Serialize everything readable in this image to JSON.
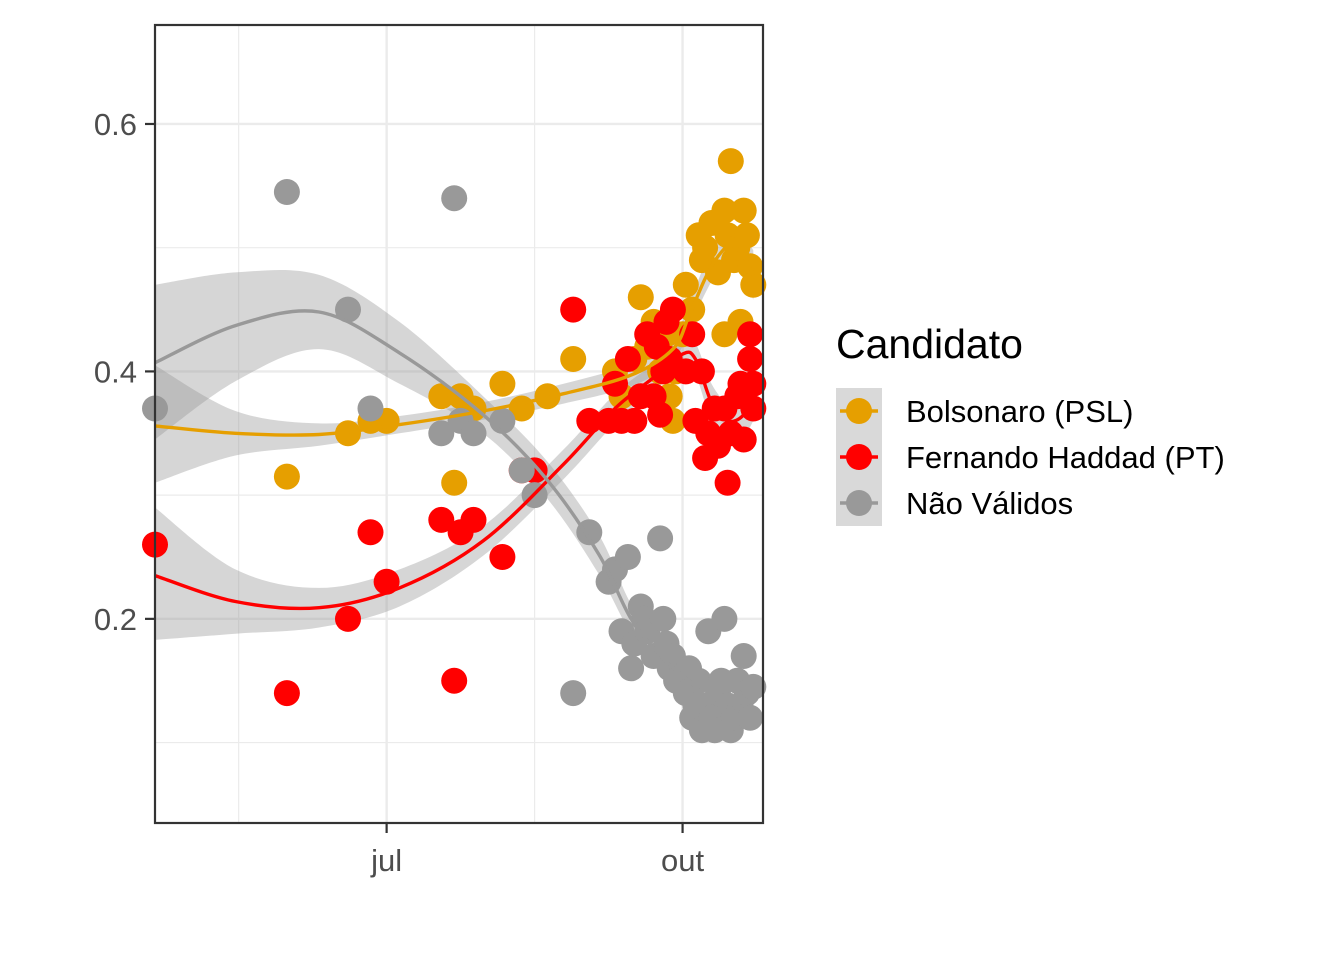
{
  "chart_data": {
    "type": "scatter",
    "title": "",
    "xlabel": "",
    "ylabel": "",
    "x_ticks": [
      {
        "label": "jul",
        "date": "2018-07-01"
      },
      {
        "label": "out",
        "date": "2018-10-01"
      }
    ],
    "xlim": [
      "2018-04-20",
      "2018-10-26"
    ],
    "y_ticks": [
      0.2,
      0.4,
      0.6
    ],
    "ylim": [
      0.035,
      0.68
    ],
    "grid": true,
    "smoothing": "loess with grey confidence band",
    "legend": {
      "title": "Candidato",
      "position": "right",
      "entries": [
        {
          "label": "Bolsonaro (PSL)",
          "color": "#E69F00"
        },
        {
          "label": "Fernando Haddad (PT)",
          "color": "#FF0000"
        },
        {
          "label": "Não Válidos",
          "color": "#999999"
        }
      ]
    },
    "series": [
      {
        "name": "Bolsonaro (PSL)",
        "color": "#E69F00",
        "points": [
          [
            "2018-05-31",
            0.315
          ],
          [
            "2018-06-19",
            0.35
          ],
          [
            "2018-06-26",
            0.36
          ],
          [
            "2018-07-01",
            0.36
          ],
          [
            "2018-07-18",
            0.38
          ],
          [
            "2018-07-22",
            0.31
          ],
          [
            "2018-07-24",
            0.38
          ],
          [
            "2018-07-28",
            0.37
          ],
          [
            "2018-08-06",
            0.39
          ],
          [
            "2018-08-12",
            0.37
          ],
          [
            "2018-08-20",
            0.38
          ],
          [
            "2018-08-28",
            0.41
          ],
          [
            "2018-09-10",
            0.4
          ],
          [
            "2018-09-12",
            0.38
          ],
          [
            "2018-09-16",
            0.41
          ],
          [
            "2018-09-18",
            0.46
          ],
          [
            "2018-09-20",
            0.42
          ],
          [
            "2018-09-22",
            0.44
          ],
          [
            "2018-09-24",
            0.4
          ],
          [
            "2018-09-26",
            0.43
          ],
          [
            "2018-09-27",
            0.38
          ],
          [
            "2018-09-28",
            0.36
          ],
          [
            "2018-09-29",
            0.4
          ],
          [
            "2018-10-01",
            0.43
          ],
          [
            "2018-10-02",
            0.47
          ],
          [
            "2018-10-04",
            0.45
          ],
          [
            "2018-10-06",
            0.51
          ],
          [
            "2018-10-07",
            0.49
          ],
          [
            "2018-10-08",
            0.5
          ],
          [
            "2018-10-10",
            0.52
          ],
          [
            "2018-10-12",
            0.48
          ],
          [
            "2018-10-14",
            0.53
          ],
          [
            "2018-10-14",
            0.43
          ],
          [
            "2018-10-15",
            0.51
          ],
          [
            "2018-10-16",
            0.57
          ],
          [
            "2018-10-17",
            0.49
          ],
          [
            "2018-10-18",
            0.5
          ],
          [
            "2018-10-19",
            0.44
          ],
          [
            "2018-10-20",
            0.53
          ],
          [
            "2018-10-21",
            0.51
          ],
          [
            "2018-10-22",
            0.485
          ],
          [
            "2018-10-23",
            0.47
          ]
        ],
        "trend": [
          [
            "2018-04-20",
            0.356
          ],
          [
            "2018-05-15",
            0.35
          ],
          [
            "2018-06-10",
            0.349
          ],
          [
            "2018-07-05",
            0.357
          ],
          [
            "2018-07-31",
            0.368
          ],
          [
            "2018-08-25",
            0.382
          ],
          [
            "2018-09-15",
            0.397
          ],
          [
            "2018-09-28",
            0.418
          ],
          [
            "2018-10-03",
            0.445
          ],
          [
            "2018-10-08",
            0.475
          ],
          [
            "2018-10-12",
            0.493
          ],
          [
            "2018-10-16",
            0.502
          ],
          [
            "2018-10-20",
            0.493
          ],
          [
            "2018-10-23",
            0.478
          ]
        ],
        "band_upper": [
          [
            "2018-04-20",
            0.405
          ],
          [
            "2018-05-15",
            0.368
          ],
          [
            "2018-06-10",
            0.358
          ],
          [
            "2018-07-05",
            0.364
          ],
          [
            "2018-07-31",
            0.375
          ],
          [
            "2018-08-25",
            0.39
          ],
          [
            "2018-09-15",
            0.406
          ],
          [
            "2018-09-28",
            0.428
          ],
          [
            "2018-10-03",
            0.455
          ],
          [
            "2018-10-08",
            0.487
          ],
          [
            "2018-10-12",
            0.505
          ],
          [
            "2018-10-16",
            0.514
          ],
          [
            "2018-10-20",
            0.508
          ],
          [
            "2018-10-23",
            0.498
          ]
        ],
        "band_lower": [
          [
            "2018-04-20",
            0.31
          ],
          [
            "2018-05-15",
            0.332
          ],
          [
            "2018-06-10",
            0.34
          ],
          [
            "2018-07-05",
            0.35
          ],
          [
            "2018-07-31",
            0.361
          ],
          [
            "2018-08-25",
            0.374
          ],
          [
            "2018-09-15",
            0.388
          ],
          [
            "2018-09-28",
            0.408
          ],
          [
            "2018-10-03",
            0.435
          ],
          [
            "2018-10-08",
            0.463
          ],
          [
            "2018-10-12",
            0.481
          ],
          [
            "2018-10-16",
            0.49
          ],
          [
            "2018-10-20",
            0.478
          ],
          [
            "2018-10-23",
            0.458
          ]
        ]
      },
      {
        "name": "Fernando Haddad (PT)",
        "color": "#FF0000",
        "points": [
          [
            "2018-04-20",
            0.26
          ],
          [
            "2018-05-31",
            0.14
          ],
          [
            "2018-06-19",
            0.2
          ],
          [
            "2018-06-26",
            0.27
          ],
          [
            "2018-07-01",
            0.23
          ],
          [
            "2018-07-18",
            0.28
          ],
          [
            "2018-07-22",
            0.15
          ],
          [
            "2018-07-24",
            0.27
          ],
          [
            "2018-07-28",
            0.28
          ],
          [
            "2018-08-06",
            0.25
          ],
          [
            "2018-08-12",
            0.32
          ],
          [
            "2018-08-16",
            0.32
          ],
          [
            "2018-08-28",
            0.45
          ],
          [
            "2018-09-02",
            0.36
          ],
          [
            "2018-09-08",
            0.36
          ],
          [
            "2018-09-10",
            0.39
          ],
          [
            "2018-09-12",
            0.36
          ],
          [
            "2018-09-14",
            0.41
          ],
          [
            "2018-09-16",
            0.36
          ],
          [
            "2018-09-18",
            0.38
          ],
          [
            "2018-09-20",
            0.43
          ],
          [
            "2018-09-22",
            0.38
          ],
          [
            "2018-09-23",
            0.42
          ],
          [
            "2018-09-24",
            0.365
          ],
          [
            "2018-09-25",
            0.4
          ],
          [
            "2018-09-26",
            0.44
          ],
          [
            "2018-09-27",
            0.41
          ],
          [
            "2018-09-28",
            0.45
          ],
          [
            "2018-10-02",
            0.4
          ],
          [
            "2018-10-04",
            0.43
          ],
          [
            "2018-10-05",
            0.36
          ],
          [
            "2018-10-07",
            0.4
          ],
          [
            "2018-10-08",
            0.33
          ],
          [
            "2018-10-09",
            0.35
          ],
          [
            "2018-10-11",
            0.37
          ],
          [
            "2018-10-12",
            0.34
          ],
          [
            "2018-10-14",
            0.37
          ],
          [
            "2018-10-15",
            0.31
          ],
          [
            "2018-10-16",
            0.35
          ],
          [
            "2018-10-18",
            0.38
          ],
          [
            "2018-10-19",
            0.39
          ],
          [
            "2018-10-20",
            0.345
          ],
          [
            "2018-10-22",
            0.43
          ],
          [
            "2018-10-22",
            0.41
          ],
          [
            "2018-10-23",
            0.37
          ],
          [
            "2018-10-23",
            0.39
          ]
        ],
        "trend": [
          [
            "2018-04-20",
            0.235
          ],
          [
            "2018-05-15",
            0.214
          ],
          [
            "2018-06-10",
            0.209
          ],
          [
            "2018-07-05",
            0.225
          ],
          [
            "2018-07-31",
            0.263
          ],
          [
            "2018-08-25",
            0.325
          ],
          [
            "2018-09-10",
            0.37
          ],
          [
            "2018-09-22",
            0.395
          ],
          [
            "2018-10-01",
            0.414
          ],
          [
            "2018-10-05",
            0.41
          ],
          [
            "2018-10-10",
            0.375
          ],
          [
            "2018-10-15",
            0.36
          ],
          [
            "2018-10-20",
            0.365
          ],
          [
            "2018-10-23",
            0.383
          ]
        ],
        "band_upper": [
          [
            "2018-04-20",
            0.29
          ],
          [
            "2018-05-15",
            0.24
          ],
          [
            "2018-06-10",
            0.225
          ],
          [
            "2018-07-05",
            0.24
          ],
          [
            "2018-07-31",
            0.275
          ],
          [
            "2018-08-25",
            0.337
          ],
          [
            "2018-09-10",
            0.382
          ],
          [
            "2018-09-22",
            0.406
          ],
          [
            "2018-10-01",
            0.425
          ],
          [
            "2018-10-05",
            0.423
          ],
          [
            "2018-10-10",
            0.39
          ],
          [
            "2018-10-15",
            0.375
          ],
          [
            "2018-10-20",
            0.382
          ],
          [
            "2018-10-23",
            0.405
          ]
        ],
        "band_lower": [
          [
            "2018-04-20",
            0.183
          ],
          [
            "2018-05-15",
            0.188
          ],
          [
            "2018-06-10",
            0.193
          ],
          [
            "2018-07-05",
            0.21
          ],
          [
            "2018-07-31",
            0.251
          ],
          [
            "2018-08-25",
            0.313
          ],
          [
            "2018-09-10",
            0.358
          ],
          [
            "2018-09-22",
            0.384
          ],
          [
            "2018-10-01",
            0.403
          ],
          [
            "2018-10-05",
            0.397
          ],
          [
            "2018-10-10",
            0.36
          ],
          [
            "2018-10-15",
            0.345
          ],
          [
            "2018-10-20",
            0.348
          ],
          [
            "2018-10-23",
            0.36
          ]
        ]
      },
      {
        "name": "Não Válidos",
        "color": "#999999",
        "points": [
          [
            "2018-04-20",
            0.37
          ],
          [
            "2018-05-31",
            0.545
          ],
          [
            "2018-06-19",
            0.45
          ],
          [
            "2018-06-26",
            0.37
          ],
          [
            "2018-07-18",
            0.35
          ],
          [
            "2018-07-22",
            0.54
          ],
          [
            "2018-07-24",
            0.36
          ],
          [
            "2018-07-28",
            0.35
          ],
          [
            "2018-08-06",
            0.36
          ],
          [
            "2018-08-12",
            0.32
          ],
          [
            "2018-08-16",
            0.3
          ],
          [
            "2018-08-28",
            0.14
          ],
          [
            "2018-09-02",
            0.27
          ],
          [
            "2018-09-08",
            0.23
          ],
          [
            "2018-09-10",
            0.24
          ],
          [
            "2018-09-12",
            0.19
          ],
          [
            "2018-09-14",
            0.25
          ],
          [
            "2018-09-15",
            0.16
          ],
          [
            "2018-09-16",
            0.18
          ],
          [
            "2018-09-18",
            0.21
          ],
          [
            "2018-09-19",
            0.2
          ],
          [
            "2018-09-20",
            0.19
          ],
          [
            "2018-09-22",
            0.17
          ],
          [
            "2018-09-24",
            0.265
          ],
          [
            "2018-09-25",
            0.2
          ],
          [
            "2018-09-26",
            0.18
          ],
          [
            "2018-09-27",
            0.16
          ],
          [
            "2018-09-28",
            0.17
          ],
          [
            "2018-09-29",
            0.15
          ],
          [
            "2018-10-01",
            0.155
          ],
          [
            "2018-10-02",
            0.14
          ],
          [
            "2018-10-03",
            0.16
          ],
          [
            "2018-10-04",
            0.12
          ],
          [
            "2018-10-05",
            0.13
          ],
          [
            "2018-10-06",
            0.15
          ],
          [
            "2018-10-07",
            0.11
          ],
          [
            "2018-10-08",
            0.13
          ],
          [
            "2018-10-09",
            0.19
          ],
          [
            "2018-10-10",
            0.12
          ],
          [
            "2018-10-11",
            0.11
          ],
          [
            "2018-10-12",
            0.14
          ],
          [
            "2018-10-13",
            0.15
          ],
          [
            "2018-10-14",
            0.2
          ],
          [
            "2018-10-15",
            0.13
          ],
          [
            "2018-10-16",
            0.11
          ],
          [
            "2018-10-17",
            0.12
          ],
          [
            "2018-10-18",
            0.15
          ],
          [
            "2018-10-19",
            0.13
          ],
          [
            "2018-10-20",
            0.17
          ],
          [
            "2018-10-21",
            0.14
          ],
          [
            "2018-10-22",
            0.12
          ],
          [
            "2018-10-23",
            0.145
          ]
        ],
        "trend": [
          [
            "2018-04-20",
            0.407
          ],
          [
            "2018-05-15",
            0.437
          ],
          [
            "2018-06-10",
            0.448
          ],
          [
            "2018-07-05",
            0.415
          ],
          [
            "2018-07-31",
            0.365
          ],
          [
            "2018-08-20",
            0.312
          ],
          [
            "2018-09-05",
            0.252
          ],
          [
            "2018-09-15",
            0.2
          ],
          [
            "2018-09-25",
            0.168
          ],
          [
            "2018-10-03",
            0.15
          ],
          [
            "2018-10-10",
            0.133
          ],
          [
            "2018-10-16",
            0.128
          ],
          [
            "2018-10-20",
            0.13
          ],
          [
            "2018-10-23",
            0.135
          ]
        ],
        "band_upper": [
          [
            "2018-04-20",
            0.47
          ],
          [
            "2018-05-15",
            0.48
          ],
          [
            "2018-06-10",
            0.478
          ],
          [
            "2018-07-05",
            0.44
          ],
          [
            "2018-07-31",
            0.38
          ],
          [
            "2018-08-20",
            0.327
          ],
          [
            "2018-09-05",
            0.268
          ],
          [
            "2018-09-15",
            0.212
          ],
          [
            "2018-09-25",
            0.179
          ],
          [
            "2018-10-03",
            0.161
          ],
          [
            "2018-10-10",
            0.145
          ],
          [
            "2018-10-16",
            0.14
          ],
          [
            "2018-10-20",
            0.143
          ],
          [
            "2018-10-23",
            0.152
          ]
        ],
        "band_lower": [
          [
            "2018-04-20",
            0.345
          ],
          [
            "2018-05-15",
            0.392
          ],
          [
            "2018-06-10",
            0.418
          ],
          [
            "2018-07-05",
            0.39
          ],
          [
            "2018-07-31",
            0.35
          ],
          [
            "2018-08-20",
            0.297
          ],
          [
            "2018-09-05",
            0.236
          ],
          [
            "2018-09-15",
            0.188
          ],
          [
            "2018-09-25",
            0.157
          ],
          [
            "2018-10-03",
            0.139
          ],
          [
            "2018-10-10",
            0.121
          ],
          [
            "2018-10-16",
            0.116
          ],
          [
            "2018-10-20",
            0.117
          ],
          [
            "2018-10-23",
            0.118
          ]
        ]
      }
    ]
  }
}
